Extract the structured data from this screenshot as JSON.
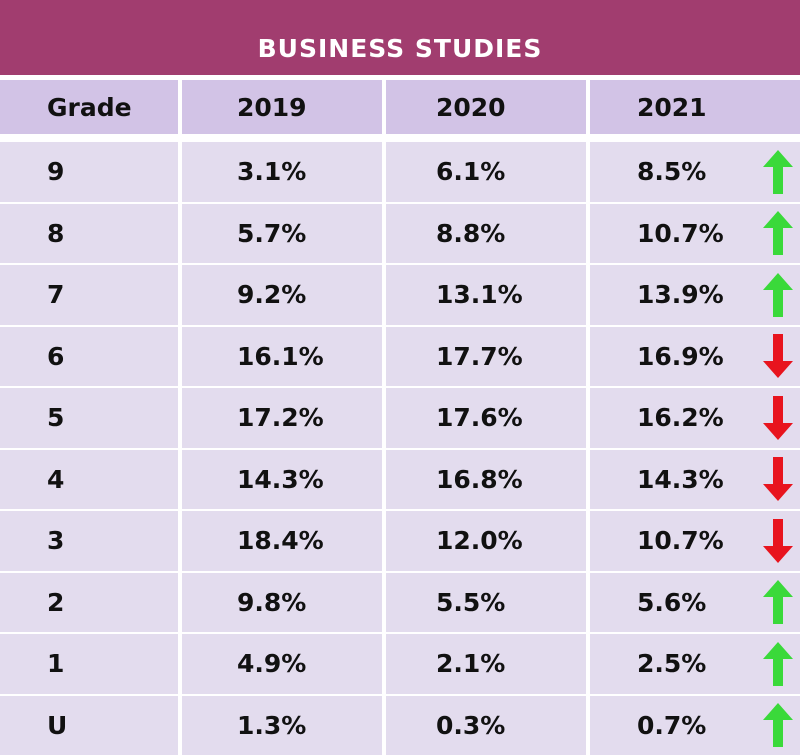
{
  "title": "BUSINESS STUDIES",
  "chart_data": {
    "type": "table",
    "title": "BUSINESS STUDIES",
    "columns": [
      "Grade",
      "2019",
      "2020",
      "2021"
    ],
    "rows": [
      {
        "grade": "9",
        "y2019": "3.1%",
        "y2020": "6.1%",
        "y2021": "8.5%",
        "trend": "up"
      },
      {
        "grade": "8",
        "y2019": "5.7%",
        "y2020": "8.8%",
        "y2021": "10.7%",
        "trend": "up"
      },
      {
        "grade": "7",
        "y2019": "9.2%",
        "y2020": "13.1%",
        "y2021": "13.9%",
        "trend": "up"
      },
      {
        "grade": "6",
        "y2019": "16.1%",
        "y2020": "17.7%",
        "y2021": "16.9%",
        "trend": "down"
      },
      {
        "grade": "5",
        "y2019": "17.2%",
        "y2020": "17.6%",
        "y2021": "16.2%",
        "trend": "down"
      },
      {
        "grade": "4",
        "y2019": "14.3%",
        "y2020": "16.8%",
        "y2021": "14.3%",
        "trend": "down"
      },
      {
        "grade": "3",
        "y2019": "18.4%",
        "y2020": "12.0%",
        "y2021": "10.7%",
        "trend": "down"
      },
      {
        "grade": "2",
        "y2019": "9.8%",
        "y2020": "5.5%",
        "y2021": "5.6%",
        "trend": "up"
      },
      {
        "grade": "1",
        "y2019": "4.9%",
        "y2020": "2.1%",
        "y2021": "2.5%",
        "trend": "up"
      },
      {
        "grade": "U",
        "y2019": "1.3%",
        "y2020": "0.3%",
        "y2021": "0.7%",
        "trend": "up"
      }
    ]
  },
  "colors": {
    "title_bg": "#a13d6f",
    "header_bg": "#d2c3e6",
    "row_bg": "#e3dcee",
    "up": "#3ad93a",
    "down": "#e8141e"
  },
  "icons": {
    "up": "arrow-up-icon",
    "down": "arrow-down-icon"
  }
}
